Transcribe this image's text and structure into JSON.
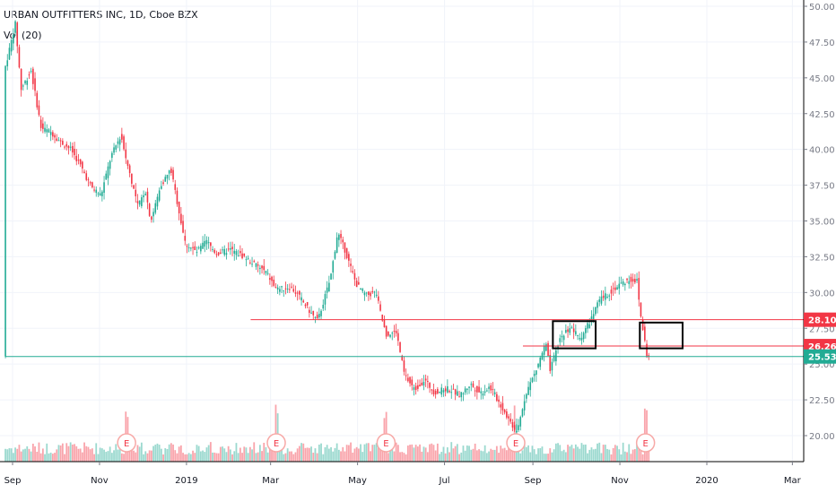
{
  "header": {
    "title": "URBAN OUTFITTERS INC, 1D, Cboe BZX",
    "indicator": "Vol (20)"
  },
  "chart_data": {
    "type": "candlestick",
    "y_ticks": [
      50,
      47.5,
      45,
      42.5,
      40,
      37.5,
      35,
      32.5,
      30,
      27.5,
      25,
      22.5,
      20
    ],
    "x_ticks": [
      "Sep",
      "Nov",
      "2019",
      "Mar",
      "May",
      "Jul",
      "Sep",
      "Nov",
      "2020",
      "Mar"
    ],
    "price_labels": [
      {
        "value": 28.1,
        "text": "28.10",
        "color": "#f23645"
      },
      {
        "value": 26.26,
        "text": "26.26",
        "color": "#f23645"
      },
      {
        "value": 25.53,
        "text": "25.53",
        "color": "#22ab94"
      }
    ],
    "horizontal_lines": [
      {
        "value": 28.1,
        "color": "#f23645",
        "from": "2019-02-15"
      },
      {
        "value": 26.26,
        "color": "#f23645",
        "from": "2019-08-25"
      },
      {
        "value": 25.53,
        "color": "#22ab94",
        "from": "2018-08-27"
      }
    ],
    "rectangles": [
      {
        "from": "2019-09-15",
        "to": "2019-10-15",
        "low": 26.1,
        "high": 28.0
      },
      {
        "from": "2019-11-15",
        "to": "2019-12-15",
        "low": 26.1,
        "high": 27.9
      }
    ],
    "earnings_markers": [
      {
        "date": "2018-11-20",
        "label": "E"
      },
      {
        "date": "2019-03-05",
        "label": "E"
      },
      {
        "date": "2019-05-21",
        "label": "E"
      },
      {
        "date": "2019-08-20",
        "label": "E"
      },
      {
        "date": "2019-11-19",
        "label": "E"
      }
    ],
    "close_path": [
      [
        "2018-08-27",
        45.8
      ],
      [
        "2018-09-03",
        48.8
      ],
      [
        "2018-09-07",
        44.2
      ],
      [
        "2018-09-14",
        45.5
      ],
      [
        "2018-09-21",
        41.5
      ],
      [
        "2018-09-28",
        41.2
      ],
      [
        "2018-10-05",
        40.5
      ],
      [
        "2018-10-12",
        40.0
      ],
      [
        "2018-10-19",
        38.8
      ],
      [
        "2018-10-26",
        37.4
      ],
      [
        "2018-11-02",
        36.8
      ],
      [
        "2018-11-09",
        39.5
      ],
      [
        "2018-11-16",
        41.0
      ],
      [
        "2018-11-20",
        39.2
      ],
      [
        "2018-11-28",
        36.0
      ],
      [
        "2018-12-03",
        37.2
      ],
      [
        "2018-12-07",
        35.0
      ],
      [
        "2018-12-14",
        37.5
      ],
      [
        "2018-12-21",
        38.6
      ],
      [
        "2018-12-31",
        33.5
      ],
      [
        "2019-01-08",
        32.8
      ],
      [
        "2019-01-15",
        33.6
      ],
      [
        "2019-01-22",
        32.7
      ],
      [
        "2019-02-01",
        33.0
      ],
      [
        "2019-02-12",
        32.4
      ],
      [
        "2019-02-26",
        31.4
      ],
      [
        "2019-03-05",
        30.2
      ],
      [
        "2019-03-15",
        30.4
      ],
      [
        "2019-03-22",
        29.6
      ],
      [
        "2019-03-29",
        28.6
      ],
      [
        "2019-04-03",
        28.0
      ],
      [
        "2019-04-12",
        31.0
      ],
      [
        "2019-04-17",
        34.2
      ],
      [
        "2019-04-22",
        33.0
      ],
      [
        "2019-04-30",
        30.6
      ],
      [
        "2019-05-07",
        29.8
      ],
      [
        "2019-05-14",
        30.0
      ],
      [
        "2019-05-17",
        28.6
      ],
      [
        "2019-05-21",
        27.0
      ],
      [
        "2019-05-28",
        27.3
      ],
      [
        "2019-06-03",
        24.2
      ],
      [
        "2019-06-10",
        23.2
      ],
      [
        "2019-06-17",
        23.9
      ],
      [
        "2019-06-24",
        23.0
      ],
      [
        "2019-07-03",
        23.3
      ],
      [
        "2019-07-12",
        22.8
      ],
      [
        "2019-07-19",
        23.6
      ],
      [
        "2019-07-26",
        23.0
      ],
      [
        "2019-08-02",
        23.4
      ],
      [
        "2019-08-09",
        22.2
      ],
      [
        "2019-08-16",
        21.0
      ],
      [
        "2019-08-21",
        20.2
      ],
      [
        "2019-08-27",
        23.0
      ],
      [
        "2019-09-03",
        24.5
      ],
      [
        "2019-09-10",
        26.5
      ],
      [
        "2019-09-13",
        24.5
      ],
      [
        "2019-09-20",
        26.8
      ],
      [
        "2019-09-27",
        27.6
      ],
      [
        "2019-10-04",
        26.8
      ],
      [
        "2019-10-11",
        28.0
      ],
      [
        "2019-10-18",
        29.5
      ],
      [
        "2019-10-25",
        30.0
      ],
      [
        "2019-11-01",
        30.6
      ],
      [
        "2019-11-08",
        30.9
      ],
      [
        "2019-11-13",
        30.8
      ],
      [
        "2019-11-15",
        28.8
      ],
      [
        "2019-11-20",
        25.6
      ],
      [
        "2019-11-22",
        25.53
      ]
    ]
  }
}
